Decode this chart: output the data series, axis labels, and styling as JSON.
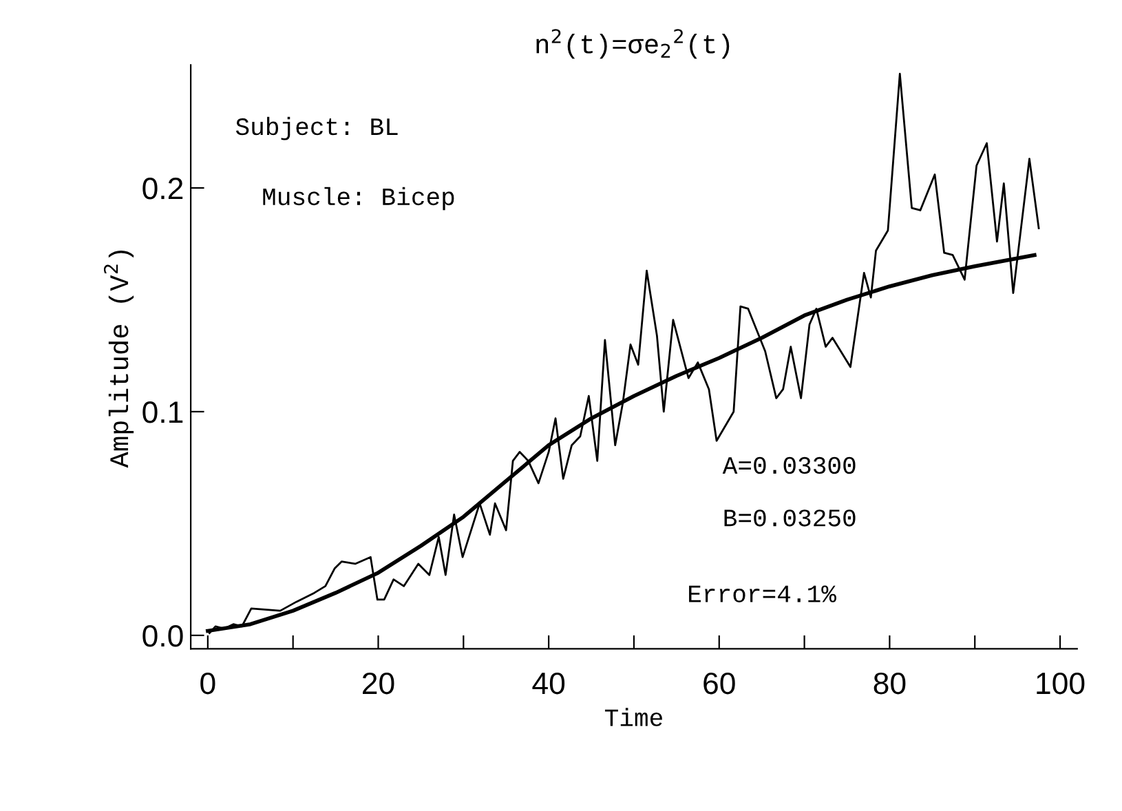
{
  "chart_data": {
    "type": "line",
    "title": "n$^{2}$(t)=σe$_{2}$$^{2}$(t)",
    "xlabel": "Time",
    "ylabel": "Amplitude (V$^{2}$)",
    "annotations": [
      "Subject: BL",
      "Muscle: Bicep",
      "A=0.03300",
      "B=0.03250",
      "Error=4.1%"
    ],
    "series": [
      {
        "color": "#000000",
        "x": [
          0.2,
          0.9,
          1.9,
          3.0,
          4.0,
          5.1,
          8.5,
          10.4,
          12.5,
          13.8,
          14.9,
          15.7,
          17.3,
          19.1,
          19.9,
          20.7,
          21.8,
          23.0,
          24.7,
          26.0,
          27.1,
          27.9,
          28.9,
          29.9,
          31.9,
          33.1,
          33.7,
          35.0,
          35.8,
          36.6,
          37.6,
          38.8,
          40.0,
          40.8,
          41.7,
          42.7,
          43.7,
          44.7,
          45.7,
          46.6,
          47.8,
          48.7,
          49.6,
          50.5,
          51.5,
          52.7,
          53.5,
          54.6,
          56.4,
          57.5,
          58.8,
          59.7,
          61.7,
          62.5,
          63.4,
          65.4,
          66.7,
          67.5,
          68.4,
          69.6,
          70.6,
          71.4,
          72.5,
          73.3,
          75.4,
          77.0,
          77.8,
          78.4,
          79.8,
          81.2,
          82.6,
          83.6,
          85.3,
          86.4,
          87.4,
          88.8,
          90.2,
          91.4,
          92.6,
          93.4,
          94.5,
          96.4,
          97.5
        ],
        "values": [
          0.001,
          0.004,
          0.003,
          0.005,
          0.004,
          0.012,
          0.011,
          0.015,
          0.019,
          0.022,
          0.03,
          0.033,
          0.032,
          0.035,
          0.016,
          0.016,
          0.025,
          0.022,
          0.032,
          0.027,
          0.044,
          0.027,
          0.054,
          0.035,
          0.059,
          0.045,
          0.059,
          0.047,
          0.078,
          0.082,
          0.078,
          0.068,
          0.082,
          0.097,
          0.07,
          0.085,
          0.089,
          0.107,
          0.078,
          0.132,
          0.085,
          0.104,
          0.13,
          0.121,
          0.163,
          0.134,
          0.1,
          0.141,
          0.115,
          0.122,
          0.11,
          0.087,
          0.1,
          0.147,
          0.146,
          0.127,
          0.106,
          0.11,
          0.129,
          0.106,
          0.139,
          0.146,
          0.129,
          0.133,
          0.12,
          0.162,
          0.151,
          0.172,
          0.181,
          0.251,
          0.191,
          0.19,
          0.206,
          0.171,
          0.17,
          0.159,
          0.21,
          0.22,
          0.176,
          0.202,
          0.153,
          0.213,
          0.182
        ]
      },
      {
        "color": "#000000",
        "x": [
          0,
          5,
          10,
          15,
          20,
          25,
          30,
          35,
          40,
          45,
          50,
          55,
          60,
          65,
          70,
          75,
          80,
          85,
          90,
          97
        ],
        "values": [
          0.002,
          0.005,
          0.011,
          0.019,
          0.028,
          0.04,
          0.053,
          0.069,
          0.085,
          0.097,
          0.107,
          0.116,
          0.124,
          0.133,
          0.143,
          0.15,
          0.156,
          0.161,
          0.165,
          0.17
        ]
      }
    ],
    "xlim": [
      -2,
      102
    ],
    "ylim": [
      -0.006,
      0.255
    ],
    "xticks": [
      0,
      {
        "value": 10,
        "label": null
      },
      20,
      {
        "value": 30,
        "label": null
      },
      40,
      {
        "value": 50,
        "label": null
      },
      60,
      {
        "value": 70,
        "label": null
      },
      80,
      {
        "value": 90,
        "label": null
      },
      100
    ],
    "yticks": [
      {
        "value": 0,
        "label": "0.0"
      },
      {
        "value": 0.1,
        "label": "0.1"
      },
      {
        "value": 0.2,
        "label": "0.2"
      }
    ],
    "grid": false,
    "legend": false,
    "marker": "none",
    "line_style": "solid"
  }
}
